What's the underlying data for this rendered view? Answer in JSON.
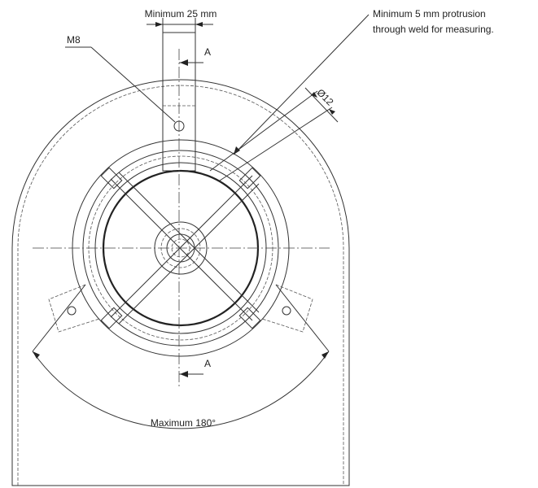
{
  "labels": {
    "min_width": "Minimum 25 mm",
    "thread": "M8",
    "section_top": "A",
    "section_bottom": "A",
    "protrusion_line1": "Minimum 5 mm protrusion",
    "protrusion_line2": "through weld for measuring.",
    "diameter": "Ø12",
    "max_angle": "Maximum 180°"
  }
}
